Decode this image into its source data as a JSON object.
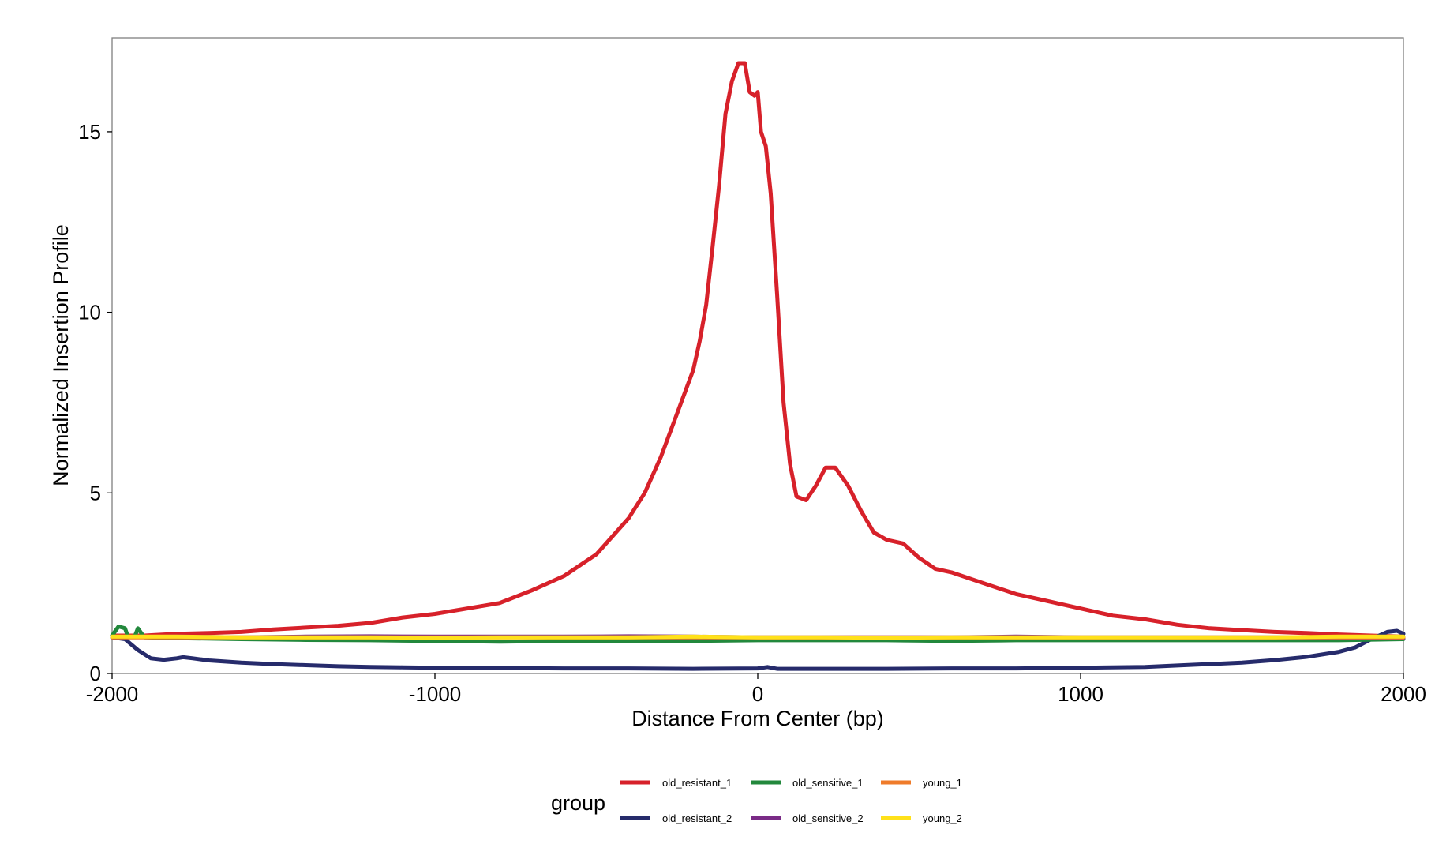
{
  "chart_data": {
    "type": "line",
    "title": "",
    "xlabel": "Distance From Center (bp)",
    "ylabel": "Normalized Insertion Profile",
    "xlim": [
      -2000,
      2000
    ],
    "ylim": [
      0,
      17.6
    ],
    "x_ticks": [
      -2000,
      -1000,
      0,
      1000,
      2000
    ],
    "x_tick_labels": [
      "-2000",
      "-1000",
      "0",
      "1000",
      "2000"
    ],
    "y_ticks": [
      0,
      5,
      10,
      15
    ],
    "y_tick_labels": [
      "0",
      "5",
      "10",
      "15"
    ],
    "grid": false,
    "legend": {
      "title": "group",
      "position": "bottom"
    },
    "series": [
      {
        "name": "old_resistant_1",
        "color": "#d7212a",
        "points": [
          [
            -2000,
            1.05
          ],
          [
            -1900,
            1.05
          ],
          [
            -1800,
            1.1
          ],
          [
            -1700,
            1.12
          ],
          [
            -1600,
            1.15
          ],
          [
            -1500,
            1.22
          ],
          [
            -1400,
            1.27
          ],
          [
            -1300,
            1.32
          ],
          [
            -1200,
            1.4
          ],
          [
            -1100,
            1.55
          ],
          [
            -1000,
            1.65
          ],
          [
            -900,
            1.8
          ],
          [
            -800,
            1.95
          ],
          [
            -700,
            2.3
          ],
          [
            -600,
            2.7
          ],
          [
            -500,
            3.3
          ],
          [
            -450,
            3.8
          ],
          [
            -400,
            4.3
          ],
          [
            -350,
            5.0
          ],
          [
            -300,
            6.0
          ],
          [
            -250,
            7.2
          ],
          [
            -200,
            8.4
          ],
          [
            -180,
            9.2
          ],
          [
            -160,
            10.2
          ],
          [
            -140,
            11.8
          ],
          [
            -120,
            13.5
          ],
          [
            -100,
            15.5
          ],
          [
            -80,
            16.4
          ],
          [
            -60,
            16.9
          ],
          [
            -40,
            16.9
          ],
          [
            -25,
            16.1
          ],
          [
            -10,
            16.0
          ],
          [
            0,
            16.1
          ],
          [
            10,
            15.0
          ],
          [
            25,
            14.6
          ],
          [
            40,
            13.3
          ],
          [
            60,
            10.5
          ],
          [
            80,
            7.5
          ],
          [
            100,
            5.8
          ],
          [
            120,
            4.9
          ],
          [
            150,
            4.8
          ],
          [
            180,
            5.2
          ],
          [
            210,
            5.7
          ],
          [
            240,
            5.7
          ],
          [
            280,
            5.2
          ],
          [
            320,
            4.5
          ],
          [
            360,
            3.9
          ],
          [
            400,
            3.7
          ],
          [
            450,
            3.6
          ],
          [
            500,
            3.2
          ],
          [
            550,
            2.9
          ],
          [
            600,
            2.8
          ],
          [
            700,
            2.5
          ],
          [
            800,
            2.2
          ],
          [
            900,
            2.0
          ],
          [
            1000,
            1.8
          ],
          [
            1100,
            1.6
          ],
          [
            1200,
            1.5
          ],
          [
            1300,
            1.35
          ],
          [
            1400,
            1.25
          ],
          [
            1500,
            1.2
          ],
          [
            1600,
            1.15
          ],
          [
            1700,
            1.12
          ],
          [
            1800,
            1.08
          ],
          [
            1900,
            1.05
          ],
          [
            2000,
            1.02
          ]
        ]
      },
      {
        "name": "old_resistant_2",
        "color": "#262b6b",
        "points": [
          [
            -2000,
            1.0
          ],
          [
            -1960,
            0.95
          ],
          [
            -1920,
            0.65
          ],
          [
            -1880,
            0.42
          ],
          [
            -1840,
            0.38
          ],
          [
            -1800,
            0.42
          ],
          [
            -1780,
            0.45
          ],
          [
            -1750,
            0.42
          ],
          [
            -1700,
            0.36
          ],
          [
            -1600,
            0.3
          ],
          [
            -1500,
            0.26
          ],
          [
            -1400,
            0.23
          ],
          [
            -1300,
            0.2
          ],
          [
            -1200,
            0.18
          ],
          [
            -1100,
            0.17
          ],
          [
            -1000,
            0.16
          ],
          [
            -800,
            0.15
          ],
          [
            -600,
            0.14
          ],
          [
            -400,
            0.14
          ],
          [
            -200,
            0.13
          ],
          [
            0,
            0.14
          ],
          [
            30,
            0.18
          ],
          [
            60,
            0.13
          ],
          [
            200,
            0.13
          ],
          [
            400,
            0.13
          ],
          [
            600,
            0.14
          ],
          [
            800,
            0.14
          ],
          [
            1000,
            0.16
          ],
          [
            1200,
            0.18
          ],
          [
            1300,
            0.22
          ],
          [
            1400,
            0.26
          ],
          [
            1500,
            0.3
          ],
          [
            1600,
            0.37
          ],
          [
            1700,
            0.46
          ],
          [
            1800,
            0.6
          ],
          [
            1850,
            0.72
          ],
          [
            1900,
            0.95
          ],
          [
            1950,
            1.15
          ],
          [
            1980,
            1.18
          ],
          [
            2000,
            1.1
          ]
        ]
      },
      {
        "name": "old_sensitive_1",
        "color": "#22883c",
        "points": [
          [
            -2000,
            1.05
          ],
          [
            -1980,
            1.3
          ],
          [
            -1960,
            1.25
          ],
          [
            -1950,
            1.0
          ],
          [
            -1930,
            1.02
          ],
          [
            -1920,
            1.25
          ],
          [
            -1900,
            1.0
          ],
          [
            -1800,
            0.98
          ],
          [
            -1600,
            0.95
          ],
          [
            -1400,
            0.93
          ],
          [
            -1200,
            0.92
          ],
          [
            -1000,
            0.9
          ],
          [
            -800,
            0.88
          ],
          [
            -600,
            0.9
          ],
          [
            -400,
            0.9
          ],
          [
            -200,
            0.9
          ],
          [
            0,
            0.92
          ],
          [
            200,
            0.92
          ],
          [
            400,
            0.92
          ],
          [
            600,
            0.9
          ],
          [
            800,
            0.92
          ],
          [
            1000,
            0.92
          ],
          [
            1200,
            0.92
          ],
          [
            1400,
            0.92
          ],
          [
            1600,
            0.92
          ],
          [
            1800,
            0.92
          ],
          [
            2000,
            0.95
          ]
        ]
      },
      {
        "name": "old_sensitive_2",
        "color": "#7a2b86",
        "points": [
          [
            -2000,
            1.0
          ],
          [
            -1800,
            1.02
          ],
          [
            -1600,
            1.0
          ],
          [
            -1400,
            1.02
          ],
          [
            -1200,
            1.03
          ],
          [
            -1000,
            1.02
          ],
          [
            -800,
            1.02
          ],
          [
            -600,
            1.02
          ],
          [
            -400,
            1.03
          ],
          [
            -200,
            1.02
          ],
          [
            0,
            1.0
          ],
          [
            200,
            1.0
          ],
          [
            400,
            1.0
          ],
          [
            600,
            1.0
          ],
          [
            800,
            1.02
          ],
          [
            1000,
            1.0
          ],
          [
            1200,
            1.0
          ],
          [
            1400,
            1.0
          ],
          [
            1600,
            1.0
          ],
          [
            1800,
            1.0
          ],
          [
            1900,
            0.98
          ],
          [
            2000,
            0.98
          ]
        ]
      },
      {
        "name": "young_1",
        "color": "#ef7b2a",
        "points": [
          [
            -2000,
            1.0
          ],
          [
            -1800,
            1.0
          ],
          [
            -1600,
            1.0
          ],
          [
            -1400,
            1.0
          ],
          [
            -1200,
            1.0
          ],
          [
            -1000,
            1.0
          ],
          [
            -800,
            1.0
          ],
          [
            -600,
            1.0
          ],
          [
            -400,
            1.0
          ],
          [
            -200,
            1.0
          ],
          [
            0,
            1.0
          ],
          [
            200,
            1.0
          ],
          [
            400,
            1.0
          ],
          [
            600,
            1.0
          ],
          [
            800,
            1.0
          ],
          [
            1000,
            1.0
          ],
          [
            1200,
            1.0
          ],
          [
            1400,
            1.0
          ],
          [
            1600,
            1.0
          ],
          [
            1800,
            1.0
          ],
          [
            2000,
            1.0
          ]
        ]
      },
      {
        "name": "young_2",
        "color": "#ffe11a",
        "points": [
          [
            -2000,
            1.02
          ],
          [
            -1800,
            1.02
          ],
          [
            -1600,
            1.0
          ],
          [
            -1400,
            1.0
          ],
          [
            -1200,
            1.0
          ],
          [
            -1000,
            0.99
          ],
          [
            -800,
            1.0
          ],
          [
            -600,
            1.0
          ],
          [
            -400,
            1.0
          ],
          [
            -200,
            1.02
          ],
          [
            0,
            1.0
          ],
          [
            200,
            1.0
          ],
          [
            400,
            0.99
          ],
          [
            600,
            1.0
          ],
          [
            800,
            1.0
          ],
          [
            1000,
            1.0
          ],
          [
            1200,
            1.0
          ],
          [
            1400,
            1.0
          ],
          [
            1600,
            1.0
          ],
          [
            1800,
            1.02
          ],
          [
            2000,
            1.02
          ]
        ]
      }
    ]
  }
}
